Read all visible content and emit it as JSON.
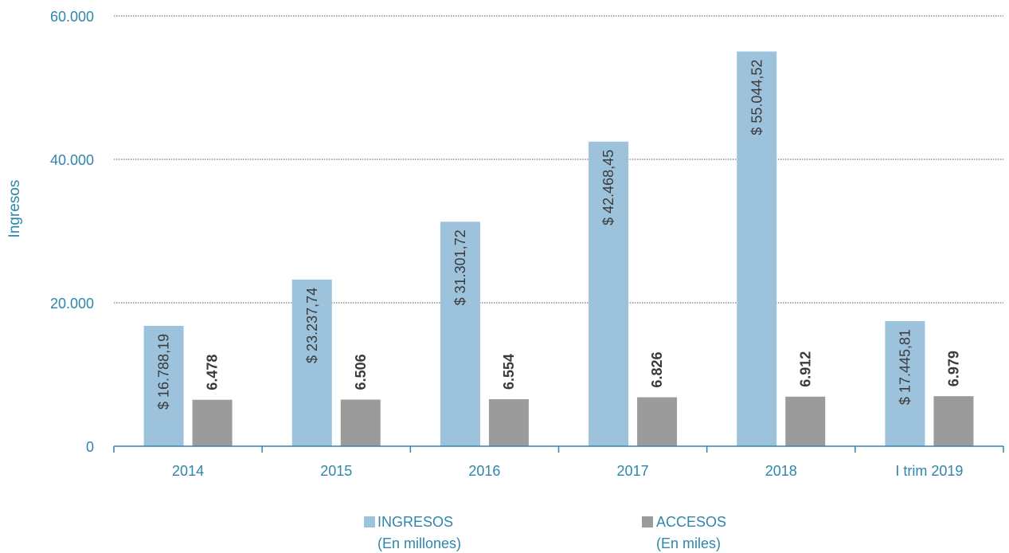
{
  "chart_data": {
    "type": "bar",
    "ylabel": "Ingresos",
    "ylim": [
      0,
      60000
    ],
    "yticks": [
      0,
      20000,
      40000,
      60000
    ],
    "ytick_labels": [
      "0",
      "20.000",
      "40.000",
      "60.000"
    ],
    "grid": true,
    "categories": [
      "2014",
      "2015",
      "2016",
      "2017",
      "2018",
      "I trim 2019"
    ],
    "series": [
      {
        "name": "INGRESOS",
        "subtitle": "(En millones)",
        "color": "#9DC3DC",
        "values": [
          16788.19,
          23237.74,
          31301.72,
          42468.45,
          55044.52,
          17445.81
        ],
        "labels": [
          "$ 16.788,19",
          "$ 23.237,74",
          "$ 31.301,72",
          "$ 42.468,45",
          "$ 55.044,52",
          "$ 17.445,81"
        ]
      },
      {
        "name": "ACCESOS",
        "subtitle": "(En miles)",
        "color": "#9B9B9B",
        "values": [
          6478,
          6506,
          6554,
          6826,
          6912,
          6979
        ],
        "labels": [
          "6.478",
          "6.506",
          "6.554",
          "6.826",
          "6.912",
          "6.979"
        ]
      }
    ],
    "legend_position": "bottom"
  }
}
